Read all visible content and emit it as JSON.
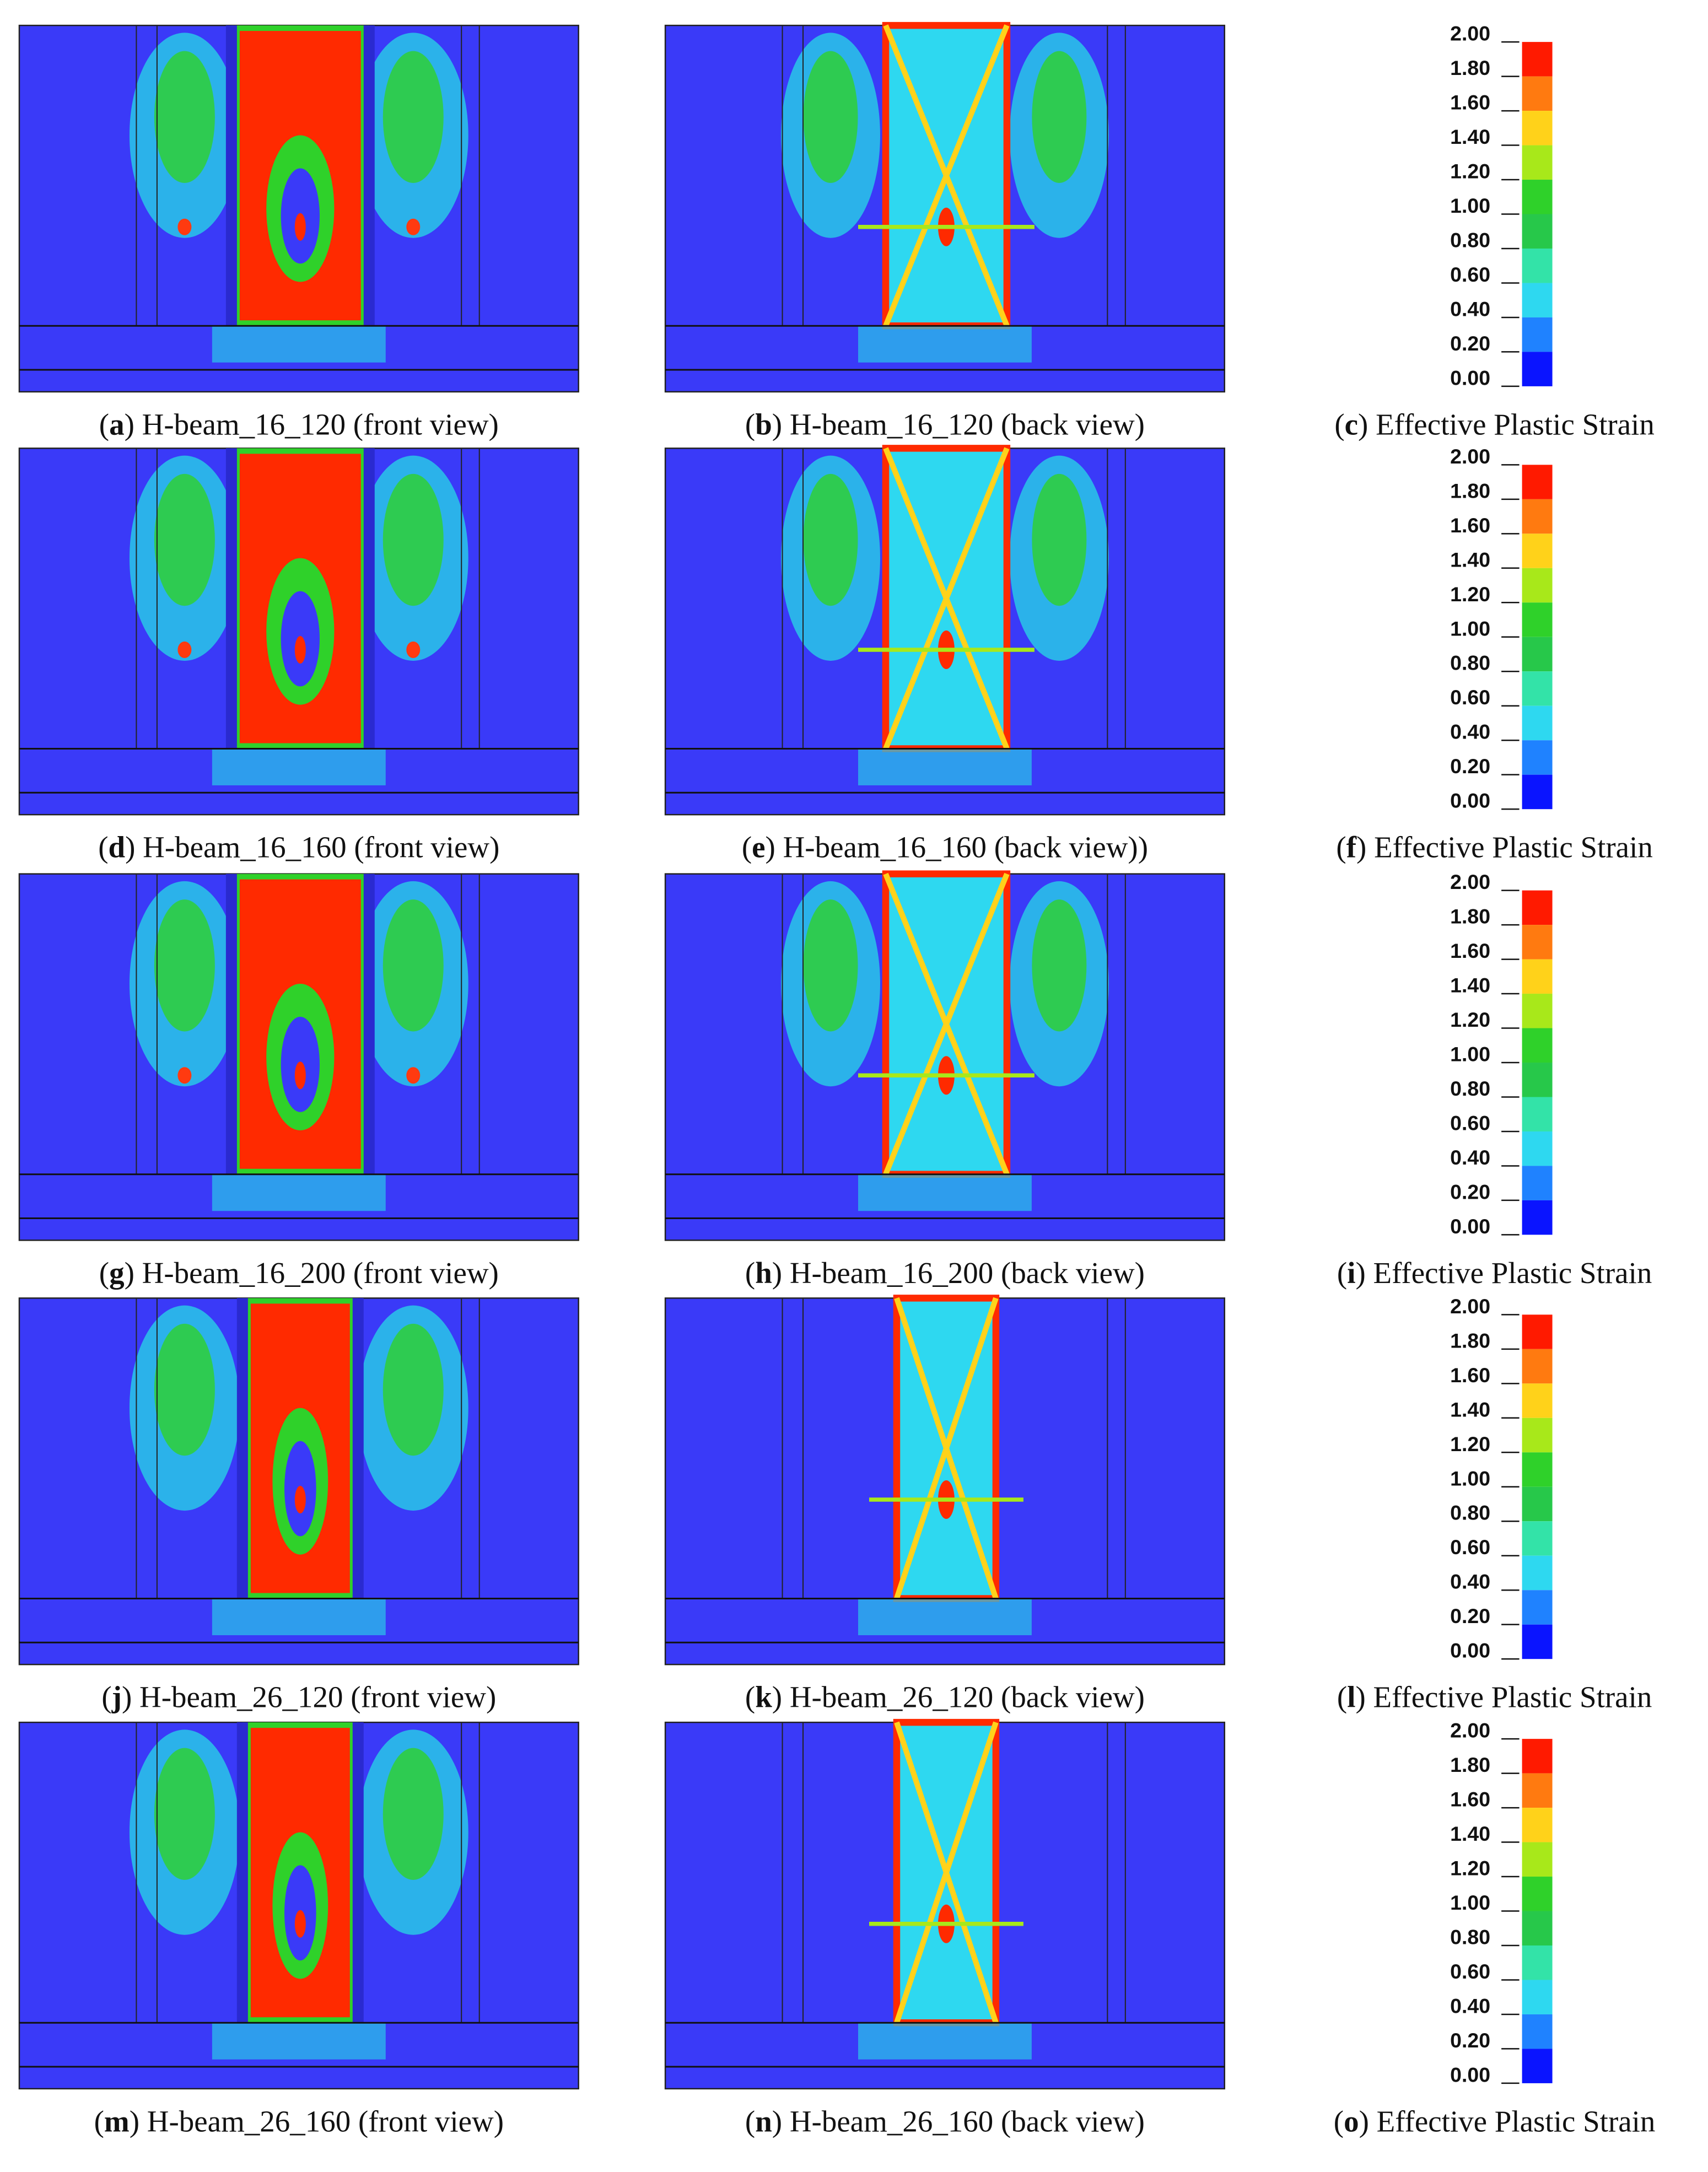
{
  "figure": {
    "rows": [
      {
        "panels": [
          {
            "prefix": "(",
            "label": "a",
            "text": ") H-beam_16_120 (front view)"
          },
          {
            "prefix": "(",
            "label": "b",
            "text": ") H-beam_16_120 (back view)"
          },
          {
            "prefix": "(",
            "label": "c",
            "text": ") Effective Plastic Strain"
          }
        ]
      },
      {
        "panels": [
          {
            "prefix": "(",
            "label": "d",
            "text": ") H-beam_16_160 (front view)"
          },
          {
            "prefix": "(",
            "label": "e",
            "text": ") H-beam_16_160 (back view))"
          },
          {
            "prefix": "(",
            "label": "f",
            "text": ") Effective Plastic Strain"
          }
        ]
      },
      {
        "panels": [
          {
            "prefix": "(",
            "label": "g",
            "text": ") H-beam_16_200 (front view)"
          },
          {
            "prefix": "(",
            "label": "h",
            "text": ") H-beam_16_200 (back view)"
          },
          {
            "prefix": "(",
            "label": "i",
            "text": ") Effective Plastic Strain"
          }
        ]
      },
      {
        "panels": [
          {
            "prefix": "(",
            "label": "j",
            "text": ") H-beam_26_120 (front view)"
          },
          {
            "prefix": "(",
            "label": "k",
            "text": ") H-beam_26_120 (back view)"
          },
          {
            "prefix": "(",
            "label": "l",
            "text": ") Effective Plastic Strain"
          }
        ]
      },
      {
        "panels": [
          {
            "prefix": "(",
            "label": "m",
            "text": ") H-beam_26_160 (front view)"
          },
          {
            "prefix": "(",
            "label": "n",
            "text": ") H-beam_26_160 (back view)"
          },
          {
            "prefix": "(",
            "label": "o",
            "text": ") Effective Plastic Strain"
          }
        ]
      }
    ],
    "colorbar": {
      "labels": [
        "2.00",
        "1.80",
        "1.60",
        "1.40",
        "1.20",
        "1.00",
        "0.80",
        "0.60",
        "0.40",
        "0.20",
        "0.00"
      ],
      "colors": [
        "#ff1a00",
        "#ff7a10",
        "#ffd21a",
        "#a8e81a",
        "#2fd12a",
        "#27c84a",
        "#33e3a8",
        "#2ed8f0",
        "#1f82ff",
        "#0a14ff"
      ]
    }
  }
}
